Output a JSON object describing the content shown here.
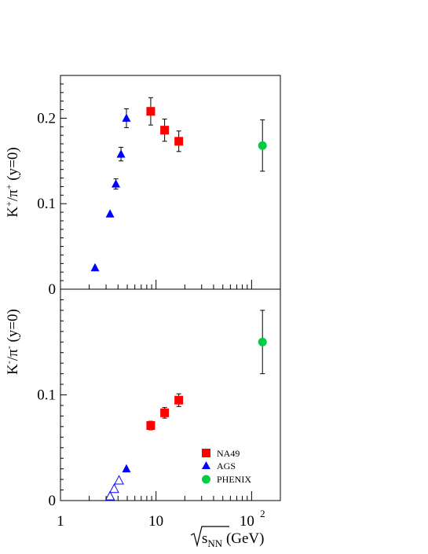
{
  "chart_data": [
    {
      "type": "scatter",
      "panel": "top",
      "ylabel_main": "K",
      "ylabel_sup1": "+",
      "ylabel_mid": "/π",
      "ylabel_sup2": "+",
      "ylabel_end": " (y=0)",
      "xscale": "log",
      "xlim": [
        1,
        200
      ],
      "ylim": [
        0,
        0.25
      ],
      "yticks": [
        {
          "value": 0,
          "label": "0"
        },
        {
          "value": 0.1,
          "label": "0.1"
        },
        {
          "value": 0.2,
          "label": "0.2"
        }
      ],
      "series": [
        {
          "name": "NA49",
          "marker": "square",
          "color": "#ff0000",
          "filled": true,
          "points": [
            {
              "x": 8.8,
              "y": 0.208,
              "err": 0.016
            },
            {
              "x": 12.3,
              "y": 0.186,
              "err": 0.013
            },
            {
              "x": 17.3,
              "y": 0.173,
              "err": 0.012
            }
          ]
        },
        {
          "name": "AGS",
          "marker": "triangle",
          "color": "#0000ff",
          "filled": true,
          "points": [
            {
              "x": 2.3,
              "y": 0.025,
              "err": 0
            },
            {
              "x": 3.3,
              "y": 0.088,
              "err": 0
            },
            {
              "x": 3.8,
              "y": 0.123,
              "err": 0.006
            },
            {
              "x": 4.3,
              "y": 0.158,
              "err": 0.008
            },
            {
              "x": 4.9,
              "y": 0.2,
              "err": 0.011
            }
          ]
        },
        {
          "name": "PHENIX",
          "marker": "circle",
          "color": "#00cc44",
          "filled": true,
          "points": [
            {
              "x": 130,
              "y": 0.168,
              "err": 0.03
            }
          ]
        }
      ]
    },
    {
      "type": "scatter",
      "panel": "bottom",
      "ylabel_main": "K",
      "ylabel_sup1": "-",
      "ylabel_mid": "/π",
      "ylabel_sup2": "-",
      "ylabel_end": " (y=0)",
      "xscale": "log",
      "xlim": [
        1,
        200
      ],
      "ylim": [
        0,
        0.2
      ],
      "yticks": [
        {
          "value": 0,
          "label": "0"
        },
        {
          "value": 0.1,
          "label": "0.1"
        }
      ],
      "series": [
        {
          "name": "NA49",
          "marker": "square",
          "color": "#ff0000",
          "filled": true,
          "points": [
            {
              "x": 8.8,
              "y": 0.071,
              "err": 0.004
            },
            {
              "x": 12.3,
              "y": 0.083,
              "err": 0.005
            },
            {
              "x": 17.3,
              "y": 0.095,
              "err": 0.006
            }
          ]
        },
        {
          "name": "AGS",
          "marker": "triangle",
          "color": "#0000ff",
          "filled": true,
          "points": [
            {
              "x": 4.9,
              "y": 0.03,
              "err": 0
            }
          ]
        },
        {
          "name": "AGS (open)",
          "marker": "triangle",
          "color": "#0000ff",
          "filled": false,
          "points": [
            {
              "x": 3.3,
              "y": 0.004,
              "err": 0
            },
            {
              "x": 3.65,
              "y": 0.011,
              "err": 0
            },
            {
              "x": 4.1,
              "y": 0.019,
              "err": 0
            }
          ]
        },
        {
          "name": "PHENIX",
          "marker": "circle",
          "color": "#00cc44",
          "filled": true,
          "points": [
            {
              "x": 130,
              "y": 0.15,
              "err": 0.03
            }
          ]
        }
      ]
    }
  ],
  "x_axis": {
    "ticks": [
      {
        "value": 1,
        "label": "1"
      },
      {
        "value": 10,
        "label": "10"
      },
      {
        "value": 100,
        "label": "10",
        "sup": "2"
      }
    ],
    "title_sub": "s",
    "title_subsub": "NN",
    "title_unit": " (GeV)"
  },
  "legend": {
    "placement": "bottom-right of lower panel",
    "entries": [
      {
        "label": "NA49",
        "marker": "square",
        "color": "#ff0000"
      },
      {
        "label": "AGS",
        "marker": "triangle",
        "color": "#0000ff"
      },
      {
        "label": "PHENIX",
        "marker": "circle",
        "color": "#00cc44"
      }
    ]
  }
}
